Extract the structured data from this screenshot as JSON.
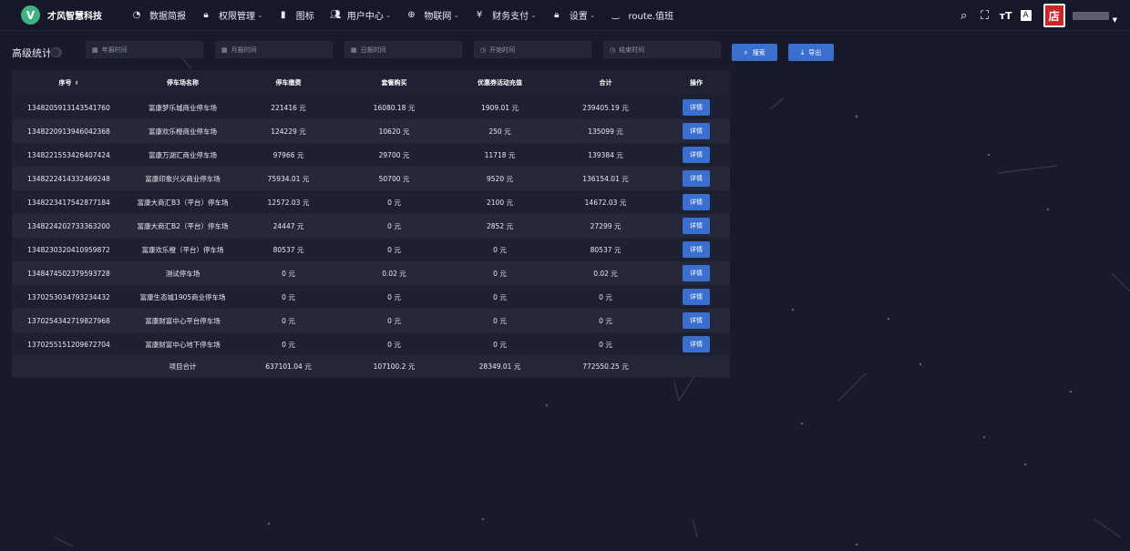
{
  "header": {
    "logo_letter": "V",
    "brand": "才风智慧科技",
    "nav": [
      {
        "label": "数据简报",
        "icon": "dashboard-icon",
        "glyph": "◔",
        "caret": false
      },
      {
        "label": "权限管理",
        "icon": "lock-icon",
        "glyph": "🔒︎",
        "caret": true
      },
      {
        "label": "图标",
        "icon": "icon-icon",
        "glyph": "▮",
        "caret": false
      },
      {
        "label": "用户中心",
        "icon": "user-icon",
        "glyph": "👥︎",
        "caret": true
      },
      {
        "label": "物联网",
        "icon": "iot-icon",
        "glyph": "⊕",
        "caret": true
      },
      {
        "label": "财务支付",
        "icon": "yen-icon",
        "glyph": "¥",
        "caret": true
      },
      {
        "label": "设置",
        "icon": "settings-lock-icon",
        "glyph": "🔒︎",
        "caret": true
      },
      {
        "label": "route.值班",
        "icon": "eye-closed-icon",
        "glyph": "‿",
        "caret": false
      }
    ],
    "tools": [
      {
        "name": "search-icon",
        "glyph": "⌕"
      },
      {
        "name": "fullscreen-icon",
        "glyph": "⛶"
      },
      {
        "name": "font-size-icon",
        "glyph": "ᴛT"
      },
      {
        "name": "translate-icon",
        "glyph": "A"
      }
    ],
    "avatar_text": "店"
  },
  "filters": {
    "label": "高级统计",
    "year_placeholder": "年报时间",
    "month_placeholder": "月报时间",
    "day_placeholder": "日报时间",
    "start_placeholder": "开始时间",
    "end_placeholder": "结束时间",
    "search_label": "搜索",
    "export_label": "导出"
  },
  "table": {
    "columns": [
      "序号",
      "停车场名称",
      "停车缴费",
      "套餐购买",
      "优惠券活动充值",
      "合计",
      "操作"
    ],
    "detail_label": "详情",
    "rows": [
      {
        "id": "1348205913143541760",
        "name": "富康梦乐城商业停车场",
        "parking": "221416 元",
        "package": "16080.18 元",
        "coupon": "1909.01 元",
        "total": "239405.19 元"
      },
      {
        "id": "1348220913946042368",
        "name": "富康欢乐橙商业停车场",
        "parking": "124229 元",
        "package": "10620 元",
        "coupon": "250 元",
        "total": "135099 元"
      },
      {
        "id": "1348221553426407424",
        "name": "富康万湖汇商业停车场",
        "parking": "97966 元",
        "package": "29700 元",
        "coupon": "11718 元",
        "total": "139384 元"
      },
      {
        "id": "1348222414332469248",
        "name": "富康印象兴义商业停车场",
        "parking": "75934.01 元",
        "package": "50700 元",
        "coupon": "9520 元",
        "total": "136154.01 元"
      },
      {
        "id": "1348223417542877184",
        "name": "富康大商汇B3（平台）停车场",
        "parking": "12572.03 元",
        "package": "0 元",
        "coupon": "2100 元",
        "total": "14672.03 元"
      },
      {
        "id": "1348224202733363200",
        "name": "富康大商汇B2（平台）停车场",
        "parking": "24447 元",
        "package": "0 元",
        "coupon": "2852 元",
        "total": "27299 元"
      },
      {
        "id": "1348230320410959872",
        "name": "富康欢乐橙（平台）停车场",
        "parking": "80537 元",
        "package": "0 元",
        "coupon": "0 元",
        "total": "80537 元"
      },
      {
        "id": "1348474502379593728",
        "name": "测试停车场",
        "parking": "0 元",
        "package": "0.02 元",
        "coupon": "0 元",
        "total": "0.02 元"
      },
      {
        "id": "1370253034793234432",
        "name": "富康生态城1905商业停车场",
        "parking": "0 元",
        "package": "0 元",
        "coupon": "0 元",
        "total": "0 元"
      },
      {
        "id": "1370254342719827968",
        "name": "富康财富中心平台停车场",
        "parking": "0 元",
        "package": "0 元",
        "coupon": "0 元",
        "total": "0 元"
      },
      {
        "id": "1370255151209672704",
        "name": "富康财富中心地下停车场",
        "parking": "0 元",
        "package": "0 元",
        "coupon": "0 元",
        "total": "0 元"
      }
    ],
    "footer": {
      "label": "项目合计",
      "parking": "637101.04 元",
      "package": "107100.2 元",
      "coupon": "28349.01 元",
      "total": "772550.25 元"
    }
  }
}
